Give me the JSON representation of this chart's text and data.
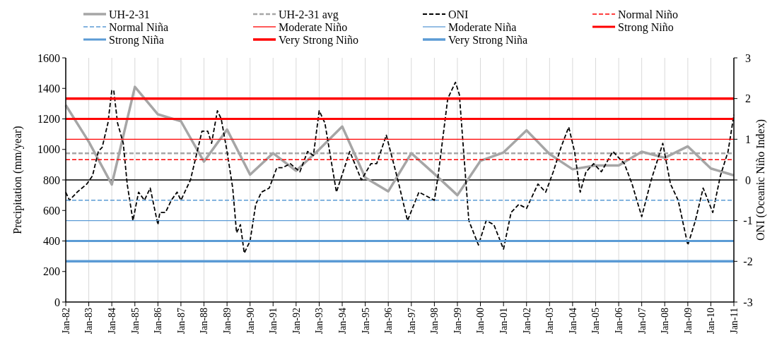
{
  "chart_data": {
    "type": "line",
    "ylabel": "Precipitation (mm/year)",
    "y2label": "ONI (Oceanic Niño Index)",
    "xlim": [
      "1982-01",
      "2011-01"
    ],
    "xticks": [
      {
        "value": "1982-01",
        "label": "Jan-82"
      },
      {
        "value": "1983-01",
        "label": "Jan-83"
      },
      {
        "value": "1984-01",
        "label": "Jan-84"
      },
      {
        "value": "1985-01",
        "label": "Jan-85"
      },
      {
        "value": "1986-01",
        "label": "Jan-86"
      },
      {
        "value": "1987-01",
        "label": "Jan-87"
      },
      {
        "value": "1988-01",
        "label": "Jan-88"
      },
      {
        "value": "1989-01",
        "label": "Jan-89"
      },
      {
        "value": "1990-01",
        "label": "Jan-90"
      },
      {
        "value": "1991-01",
        "label": "Jan-91"
      },
      {
        "value": "1992-01",
        "label": "Jan-92"
      },
      {
        "value": "1993-01",
        "label": "Jan-93"
      },
      {
        "value": "1994-01",
        "label": "Jan-94"
      },
      {
        "value": "1995-01",
        "label": "Jan-95"
      },
      {
        "value": "1996-01",
        "label": "Jan-96"
      },
      {
        "value": "1997-01",
        "label": "Jan-97"
      },
      {
        "value": "1998-01",
        "label": "Jan-98"
      },
      {
        "value": "1999-01",
        "label": "Jan-99"
      },
      {
        "value": "2000-01",
        "label": "Jan-00"
      },
      {
        "value": "2001-01",
        "label": "Jan-01"
      },
      {
        "value": "2002-01",
        "label": "Jan-02"
      },
      {
        "value": "2003-01",
        "label": "Jan-03"
      },
      {
        "value": "2004-01",
        "label": "Jan-04"
      },
      {
        "value": "2005-01",
        "label": "Jan-05"
      },
      {
        "value": "2006-01",
        "label": "Jan-06"
      },
      {
        "value": "2007-01",
        "label": "Jan-07"
      },
      {
        "value": "2008-01",
        "label": "Jan-08"
      },
      {
        "value": "2009-01",
        "label": "Jan-09"
      },
      {
        "value": "2010-01",
        "label": "Jan-10"
      },
      {
        "value": "2011-01",
        "label": "Jan-11"
      }
    ],
    "ylim": [
      0,
      1600
    ],
    "yticks": [
      0,
      200,
      400,
      600,
      800,
      1000,
      1200,
      1400,
      1600
    ],
    "y2lim": [
      -3,
      3
    ],
    "y2ticks": [
      -3,
      -2,
      -1,
      0,
      1,
      2,
      3
    ],
    "grid": "x",
    "legend": "top",
    "marker": "none",
    "ref_lines": [
      {
        "axis": "y2",
        "value": 0,
        "color": "#000000"
      }
    ],
    "series": [
      {
        "name": "UH-2-31",
        "color": "#a6a6a6",
        "line_style": "solid",
        "x": [
          "1982-01",
          "1983-01",
          "1984-01",
          "1985-01",
          "1986-01",
          "1987-01",
          "1988-01",
          "1989-01",
          "1990-01",
          "1991-01",
          "1992-01",
          "1993-01",
          "1994-01",
          "1995-01",
          "1996-01",
          "1997-01",
          "1998-01",
          "1999-01",
          "2000-01",
          "2001-01",
          "2002-01",
          "2003-01",
          "2004-01",
          "2005-01",
          "2006-01",
          "2007-01",
          "2008-01",
          "2009-01",
          "2010-01",
          "2011-01"
        ],
        "values": [
          1290,
          1050,
          770,
          1410,
          1230,
          1185,
          920,
          1130,
          835,
          975,
          860,
          1000,
          1150,
          815,
          725,
          975,
          840,
          700,
          925,
          980,
          1125,
          970,
          870,
          895,
          895,
          985,
          945,
          1020,
          875,
          830
        ]
      },
      {
        "name": "UH-2-31 avg",
        "color": "#a6a6a6",
        "line_style": "dashed",
        "x": [
          "1982-01",
          "2011-01"
        ],
        "values": [
          975,
          975
        ]
      },
      {
        "name": "ONI",
        "color": "#000000",
        "line_style": "dashed",
        "axis": "y2",
        "x": [
          "1982-01",
          "1982-03",
          "1982-07",
          "1982-12",
          "1983-03",
          "1983-06",
          "1983-08",
          "1983-11",
          "1984-01",
          "1984-02",
          "1984-04",
          "1984-07",
          "1984-09",
          "1984-12",
          "1985-03",
          "1985-06",
          "1985-09",
          "1986-01",
          "1986-02",
          "1986-05",
          "1986-08",
          "1986-11",
          "1987-01",
          "1987-06",
          "1987-09",
          "1987-12",
          "1988-03",
          "1988-05",
          "1988-08",
          "1988-10",
          "1989-01",
          "1989-04",
          "1989-06",
          "1989-08",
          "1989-10",
          "1990-01",
          "1990-04",
          "1990-07",
          "1990-11",
          "1991-03",
          "1991-06",
          "1991-10",
          "1992-03",
          "1992-07",
          "1992-10",
          "1993-01",
          "1993-04",
          "1993-10",
          "1994-05",
          "1994-11",
          "1995-04",
          "1995-07",
          "1995-12",
          "1996-06",
          "1996-11",
          "1997-05",
          "1997-09",
          "1998-01",
          "1998-03",
          "1998-08",
          "1998-12",
          "1999-02",
          "1999-07",
          "1999-12",
          "2000-04",
          "2000-08",
          "2001-01",
          "2001-05",
          "2001-09",
          "2002-01",
          "2002-07",
          "2002-11",
          "2003-03",
          "2003-07",
          "2003-11",
          "2004-02",
          "2004-05",
          "2004-08",
          "2004-12",
          "2005-04",
          "2005-10",
          "2006-04",
          "2006-08",
          "2007-01",
          "2007-06",
          "2007-12",
          "2008-04",
          "2008-08",
          "2009-01",
          "2009-05",
          "2009-09",
          "2010-02",
          "2010-06",
          "2010-10",
          "2011-01"
        ],
        "values": [
          -0.3,
          -0.5,
          -0.3,
          -0.1,
          0.1,
          0.7,
          0.8,
          1.4,
          2.2,
          2.2,
          1.4,
          0.9,
          -0.1,
          -1.0,
          -0.3,
          -0.5,
          -0.2,
          -1.1,
          -0.8,
          -0.8,
          -0.5,
          -0.3,
          -0.5,
          0,
          0.6,
          1.2,
          1.2,
          0.9,
          1.7,
          1.5,
          0.7,
          -0.2,
          -1.3,
          -1.1,
          -1.8,
          -1.5,
          -0.6,
          -0.3,
          -0.2,
          0.3,
          0.3,
          0.4,
          0.2,
          0.7,
          0.6,
          1.7,
          1.4,
          -0.3,
          0.7,
          0,
          0.4,
          0.4,
          1.1,
          0,
          -1.0,
          -0.3,
          -0.4,
          -0.5,
          0.1,
          2.0,
          2.4,
          2.1,
          -1.0,
          -1.6,
          -1.0,
          -1.1,
          -1.7,
          -0.8,
          -0.6,
          -0.7,
          -0.1,
          -0.3,
          0.2,
          0.8,
          1.3,
          0.7,
          -0.3,
          0.2,
          0.4,
          0.2,
          0.7,
          0.4,
          -0.1,
          -0.9,
          0,
          0.9,
          -0.1,
          -0.5,
          -1.6,
          -1.0,
          -0.2,
          -0.8,
          0.1,
          0.7,
          1.6
        ]
      },
      {
        "name": "Normal Niño",
        "color": "#ff0000",
        "line_style": "dashed",
        "axis": "y2",
        "x": [
          "1982-01",
          "2011-01"
        ],
        "values": [
          0.5,
          0.5
        ]
      },
      {
        "name": "Normal Niña",
        "color": "#5b9bd5",
        "line_style": "dashed",
        "axis": "y2",
        "x": [
          "1982-01",
          "2011-01"
        ],
        "values": [
          -0.5,
          -0.5
        ]
      },
      {
        "name": "Moderate Niño",
        "color": "#ff0000",
        "line_style": "solid",
        "axis": "y2",
        "x": [
          "1982-01",
          "2011-01"
        ],
        "values": [
          1,
          1
        ]
      },
      {
        "name": "Moderate Niña",
        "color": "#5b9bd5",
        "line_style": "solid",
        "axis": "y2",
        "x": [
          "1982-01",
          "2011-01"
        ],
        "values": [
          -1,
          -1
        ]
      },
      {
        "name": "Strong Niño",
        "color": "#ff0000",
        "line_style": "solid",
        "axis": "y2",
        "x": [
          "1982-01",
          "2011-01"
        ],
        "values": [
          1.5,
          1.5
        ]
      },
      {
        "name": "Strong Niña",
        "color": "#5b9bd5",
        "line_style": "solid",
        "axis": "y2",
        "x": [
          "1982-01",
          "2011-01"
        ],
        "values": [
          -1.5,
          -1.5
        ]
      },
      {
        "name": "Very Strong Niño",
        "color": "#ff0000",
        "line_style": "solid",
        "axis": "y2",
        "x": [
          "1982-01",
          "2011-01"
        ],
        "values": [
          2,
          2
        ]
      },
      {
        "name": "Very Strong Niña",
        "color": "#5b9bd5",
        "line_style": "solid",
        "axis": "y2",
        "x": [
          "1982-01",
          "2011-01"
        ],
        "values": [
          -2,
          -2
        ]
      }
    ]
  }
}
